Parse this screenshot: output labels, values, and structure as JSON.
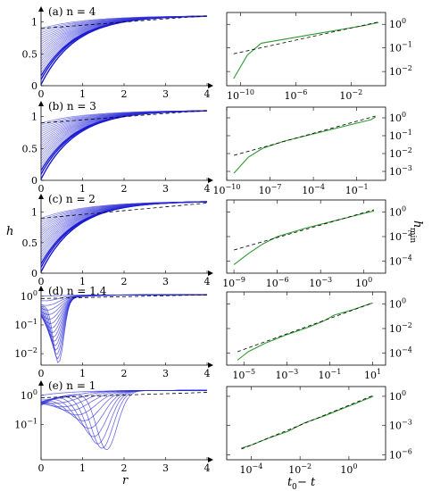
{
  "chart_data": {
    "type": "line",
    "shared_labels": {
      "left_ylabel": "h",
      "left_xlabel": "r",
      "right_ylabel": "h",
      "right_ylabel_sub": "min",
      "right_xlabel": "t0 − t",
      "right_xlabel_main": "t",
      "right_xlabel_sub": "0",
      "right_xlabel_rest": " − t"
    },
    "rows": [
      {
        "label": "(a) n = 4",
        "left": {
          "yscale": "linear",
          "xlim": [
            0,
            4
          ],
          "ylim": [
            0,
            1.15
          ],
          "xticks": [
            "0",
            "1",
            "2",
            "3",
            "4"
          ],
          "yticks": [
            "0",
            "0.5",
            "1"
          ],
          "profiles": {
            "h0_first": 0.02,
            "h0_last": 0.9,
            "count": 22,
            "h_end": 1.1
          },
          "dashed": {
            "x": [
              0,
              4
            ],
            "y": [
              0.9,
              1.1
            ]
          }
        },
        "right": {
          "xscale": "log",
          "yscale": "log",
          "xlim": [
            -11,
            0.5
          ],
          "ylim": [
            -2.6,
            0.5
          ],
          "xticks": [
            "10^-10",
            "10^-6",
            "10^-2"
          ],
          "yticks": [
            "10^0",
            "10^-1",
            "10^-2"
          ],
          "green": {
            "x": [
              -10.5,
              -9.5,
              -8.5,
              -7,
              -5,
              -3,
              -1,
              0
            ],
            "y": [
              -2.3,
              -1.3,
              -0.8,
              -0.65,
              -0.45,
              -0.25,
              -0.05,
              0.08
            ]
          },
          "dashed": {
            "x": [
              -10.5,
              0
            ],
            "y": [
              -1.25,
              0.1
            ]
          }
        }
      },
      {
        "label": "(b) n = 3",
        "left": {
          "yscale": "linear",
          "xlim": [
            0,
            4
          ],
          "ylim": [
            0,
            1.15
          ],
          "xticks": [
            "0",
            "1",
            "2",
            "3",
            "4"
          ],
          "yticks": [
            "0",
            "0.5",
            "1"
          ],
          "profiles": {
            "h0_first": 0.02,
            "h0_last": 0.9,
            "count": 22,
            "h_end": 1.1
          },
          "dashed": {
            "x": [
              0,
              4
            ],
            "y": [
              0.9,
              1.1
            ]
          }
        },
        "right": {
          "xscale": "log",
          "yscale": "log",
          "xlim": [
            -10,
            1
          ],
          "ylim": [
            -3.5,
            0.6
          ],
          "xticks": [
            "10^-10",
            "10^-7",
            "10^-4",
            "10^-1"
          ],
          "yticks": [
            "10^0",
            "10^-1",
            "10^-2",
            "10^-3"
          ],
          "green": {
            "x": [
              -9.5,
              -8.5,
              -7.5,
              -6,
              -4,
              -2,
              0,
              0.3
            ],
            "y": [
              -3.1,
              -2.2,
              -1.7,
              -1.3,
              -0.9,
              -0.5,
              -0.1,
              0.05
            ]
          },
          "dashed": {
            "x": [
              -9.5,
              0.3
            ],
            "y": [
              -2.1,
              0.1
            ]
          }
        }
      },
      {
        "label": "(c) n = 2",
        "left": {
          "yscale": "linear",
          "xlim": [
            0,
            4
          ],
          "ylim": [
            0,
            1.2
          ],
          "xticks": [
            "0",
            "1",
            "2",
            "3",
            "4"
          ],
          "yticks": [
            "0",
            "0.5",
            "1"
          ],
          "ylabel": "h",
          "profiles": {
            "h0_first": 0.02,
            "h0_last": 0.9,
            "count": 22,
            "h_end": 1.18
          },
          "dashed": {
            "x": [
              0,
              4
            ],
            "y": [
              0.9,
              1.15
            ]
          }
        },
        "right": {
          "xscale": "log",
          "yscale": "log",
          "xlim": [
            -9.5,
            1.5
          ],
          "ylim": [
            -5,
            1
          ],
          "xticks": [
            "10^-9",
            "10^-6",
            "10^-3",
            "10^0"
          ],
          "yticks": [
            "10^0",
            "10^-2",
            "10^-4"
          ],
          "ylabel": "h_min",
          "green": {
            "x": [
              -9,
              -8,
              -7,
              -6,
              -4,
              -2,
              0,
              0.7
            ],
            "y": [
              -4.3,
              -3.4,
              -2.6,
              -2.0,
              -1.3,
              -0.7,
              -0.1,
              0.1
            ]
          },
          "dashed": {
            "x": [
              -9,
              0.7
            ],
            "y": [
              -3.1,
              0.2
            ]
          }
        }
      },
      {
        "label": "(d) n = 1.4",
        "left": {
          "yscale": "log",
          "xlim": [
            0,
            4
          ],
          "ylim": [
            -2.4,
            0.15
          ],
          "xticks": [
            "0",
            "1",
            "2",
            "3",
            "4"
          ],
          "yticks": [
            "10^0",
            "10^-1",
            "10^-2"
          ],
          "dashed": {
            "x": [
              0,
              4
            ],
            "y": [
              -0.08,
              0.05
            ]
          }
        },
        "right": {
          "xscale": "log",
          "yscale": "log",
          "xlim": [
            -5.8,
            1.6
          ],
          "ylim": [
            -5,
            1
          ],
          "xticks": [
            "10^-5",
            "10^-3",
            "10^-1",
            "10^1"
          ],
          "yticks": [
            "10^0",
            "10^-2",
            "10^-4"
          ],
          "green": {
            "x": [
              -5.3,
              -4.8,
              -4,
              -3,
              -2,
              -1.3,
              -0.8,
              0,
              1
            ],
            "y": [
              -4.6,
              -3.9,
              -3.2,
              -2.5,
              -1.9,
              -1.4,
              -0.9,
              -0.5,
              0.1
            ]
          },
          "dashed": {
            "x": [
              -5.3,
              1
            ],
            "y": [
              -3.9,
              0.1
            ]
          }
        }
      },
      {
        "label": "(e) n = 1",
        "left": {
          "yscale": "log",
          "xlim": [
            0,
            4
          ],
          "ylim": [
            -2.2,
            0.3
          ],
          "xticks": [
            "0",
            "1",
            "2",
            "3",
            "4"
          ],
          "yticks": [
            "10^0",
            "10^-1"
          ],
          "dashed": {
            "x": [
              0,
              4
            ],
            "y": [
              -0.08,
              0.1
            ]
          }
        },
        "right": {
          "xscale": "log",
          "yscale": "log",
          "xlim": [
            -5,
            1.5
          ],
          "ylim": [
            -6.5,
            1
          ],
          "xticks": [
            "10^-4",
            "10^-2",
            "10^0"
          ],
          "yticks": [
            "10^0",
            "10^-3",
            "10^-6"
          ],
          "green": {
            "x": [
              -4.4,
              -4,
              -3.3,
              -2.5,
              -1.8,
              -1,
              -0.3,
              0.4,
              1
            ],
            "y": [
              -5.3,
              -5.0,
              -4.3,
              -3.6,
              -2.7,
              -2.0,
              -1.3,
              -0.6,
              0.0
            ]
          },
          "dashed": {
            "x": [
              -4.4,
              1
            ],
            "y": [
              -5.4,
              0.1
            ]
          }
        }
      }
    ],
    "colors": {
      "profiles": "#2b2bd8",
      "profiles_dark": "#1a1ad0",
      "green": "#2e9a2e",
      "dashed": "#000000"
    }
  }
}
